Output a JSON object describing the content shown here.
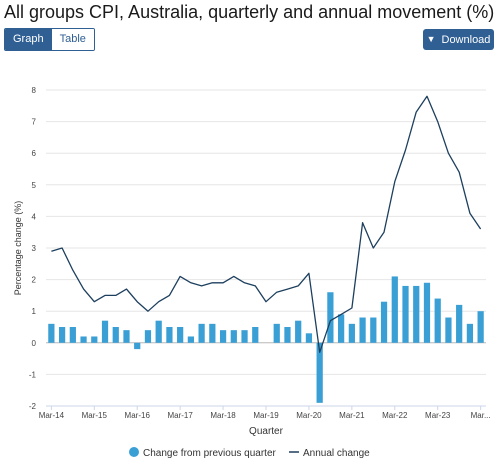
{
  "page_title": "All groups CPI, Australia, quarterly and annual movement (%)",
  "view_toggle": {
    "graph_label": "Graph",
    "table_label": "Table",
    "active": "Graph"
  },
  "download": {
    "label": "Download",
    "icon": "chevron-down-icon"
  },
  "colors": {
    "bar": "#3a9fd4",
    "line": "#1d3f5e",
    "button": "#2f5f93"
  },
  "chart_data": {
    "type": "bar",
    "title": "All groups CPI, Australia, quarterly and annual movement (%)",
    "xlabel": "Quarter",
    "ylabel": "Percentage change (%)",
    "ylim": [
      -2,
      8
    ],
    "yticks": [
      "-2",
      "-1",
      "0",
      "1",
      "2",
      "3",
      "4",
      "5",
      "6",
      "7",
      "8"
    ],
    "xtick_labels": [
      "Mar-14",
      "Mar-15",
      "Mar-16",
      "Mar-17",
      "Mar-18",
      "Mar-19",
      "Mar-20",
      "Mar-21",
      "Mar-22",
      "Mar-23",
      "Mar..."
    ],
    "grid": true,
    "legend_position": "bottom",
    "categories": [
      "Mar-14",
      "Jun-14",
      "Sep-14",
      "Dec-14",
      "Mar-15",
      "Jun-15",
      "Sep-15",
      "Dec-15",
      "Mar-16",
      "Jun-16",
      "Sep-16",
      "Dec-16",
      "Mar-17",
      "Jun-17",
      "Sep-17",
      "Dec-17",
      "Mar-18",
      "Jun-18",
      "Sep-18",
      "Dec-18",
      "Mar-19",
      "Jun-19",
      "Sep-19",
      "Dec-19",
      "Mar-20",
      "Jun-20",
      "Sep-20",
      "Dec-20",
      "Mar-21",
      "Jun-21",
      "Sep-21",
      "Dec-21",
      "Mar-22",
      "Jun-22",
      "Sep-22",
      "Dec-22",
      "Mar-23",
      "Jun-23",
      "Sep-23",
      "Dec-23",
      "Mar-24"
    ],
    "series": [
      {
        "name": "Change from previous quarter",
        "kind": "bar",
        "values": [
          0.6,
          0.5,
          0.5,
          0.2,
          0.2,
          0.7,
          0.5,
          0.4,
          -0.2,
          0.4,
          0.7,
          0.5,
          0.5,
          0.2,
          0.6,
          0.6,
          0.4,
          0.4,
          0.4,
          0.5,
          0.0,
          0.6,
          0.5,
          0.7,
          0.3,
          -1.9,
          1.6,
          0.9,
          0.6,
          0.8,
          0.8,
          1.3,
          2.1,
          1.8,
          1.8,
          1.9,
          1.4,
          0.8,
          1.2,
          0.6,
          1.0
        ]
      },
      {
        "name": "Annual change",
        "kind": "line",
        "values": [
          2.9,
          3.0,
          2.3,
          1.7,
          1.3,
          1.5,
          1.5,
          1.7,
          1.3,
          1.0,
          1.3,
          1.5,
          2.1,
          1.9,
          1.8,
          1.9,
          1.9,
          2.1,
          1.9,
          1.8,
          1.3,
          1.6,
          1.7,
          1.8,
          2.2,
          -0.3,
          0.7,
          0.9,
          1.1,
          3.8,
          3.0,
          3.5,
          5.1,
          6.1,
          7.3,
          7.8,
          7.0,
          6.0,
          5.4,
          4.1,
          3.6
        ]
      }
    ]
  }
}
